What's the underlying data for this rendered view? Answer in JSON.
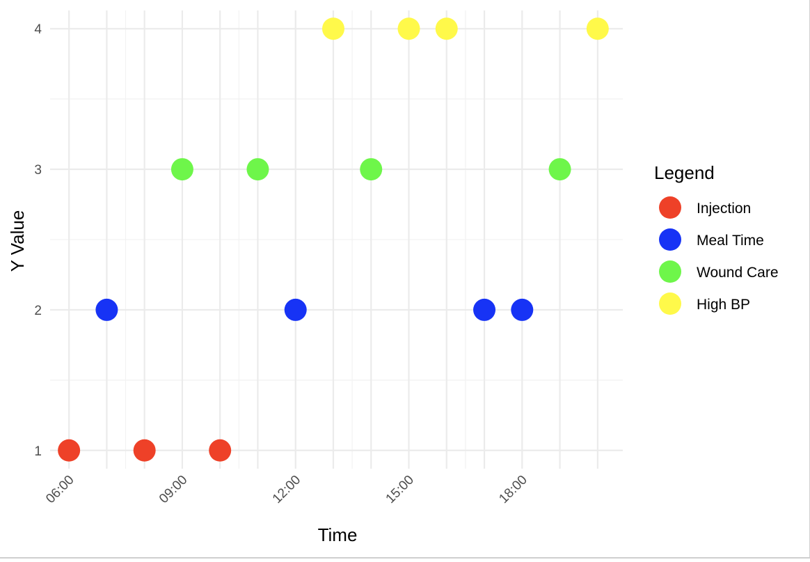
{
  "chart_data": {
    "type": "scatter",
    "title": "",
    "xlabel": "Time",
    "ylabel": "Y Value",
    "x_ticks": [
      "06:00",
      "09:00",
      "12:00",
      "15:00",
      "18:00"
    ],
    "x_tick_hours": [
      6,
      9,
      12,
      15,
      18
    ],
    "xlim": [
      "05:30",
      "20:40"
    ],
    "y_ticks": [
      1,
      2,
      3,
      4
    ],
    "ylim": [
      0.87,
      4.13
    ],
    "grid": true,
    "legend": {
      "title": "Legend",
      "position": "right"
    },
    "series": [
      {
        "name": "Injection",
        "color": "#EE4128",
        "points": [
          {
            "x": "06:00",
            "y": 1
          },
          {
            "x": "08:00",
            "y": 1
          },
          {
            "x": "10:00",
            "y": 1
          }
        ]
      },
      {
        "name": "Meal Time",
        "color": "#1733F5",
        "points": [
          {
            "x": "07:00",
            "y": 2
          },
          {
            "x": "12:00",
            "y": 2
          },
          {
            "x": "17:00",
            "y": 2
          },
          {
            "x": "18:00",
            "y": 2
          }
        ]
      },
      {
        "name": "Wound Care",
        "color": "#6EF64A",
        "points": [
          {
            "x": "09:00",
            "y": 3
          },
          {
            "x": "11:00",
            "y": 3
          },
          {
            "x": "14:00",
            "y": 3
          },
          {
            "x": "19:00",
            "y": 3
          }
        ]
      },
      {
        "name": "High BP",
        "color": "#FFF94A",
        "points": [
          {
            "x": "13:00",
            "y": 4
          },
          {
            "x": "15:00",
            "y": 4
          },
          {
            "x": "16:00",
            "y": 4
          },
          {
            "x": "20:00",
            "y": 4
          }
        ]
      }
    ]
  }
}
